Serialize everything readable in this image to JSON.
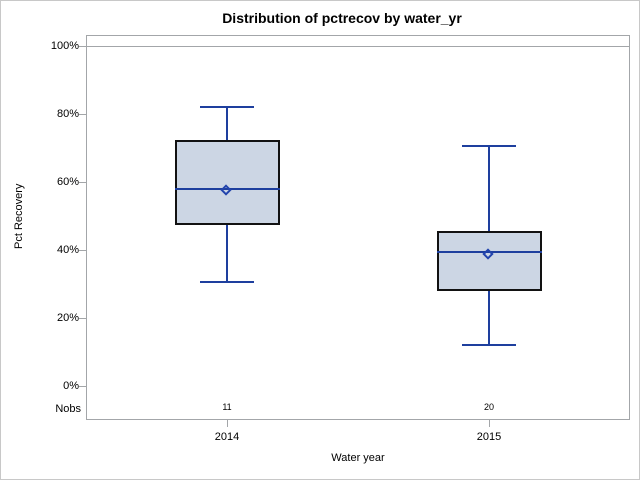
{
  "chart_data": {
    "type": "box",
    "title": "Distribution of pctrecov by water_yr",
    "xlabel": "Water year",
    "ylabel": "Pct Recovery",
    "nobs_label": "Nobs",
    "ylim": [
      0,
      100
    ],
    "y_ticks": [
      {
        "value": 0,
        "label": "0%"
      },
      {
        "value": 20,
        "label": "20%"
      },
      {
        "value": 40,
        "label": "40%"
      },
      {
        "value": 60,
        "label": "60%"
      },
      {
        "value": 80,
        "label": "80%"
      },
      {
        "value": 100,
        "label": "100%"
      }
    ],
    "reference_line_value": 100,
    "grid": false,
    "legend": "none",
    "categories": [
      "2014",
      "2015"
    ],
    "series": [
      {
        "category": "2014",
        "nobs": "11",
        "whisker_low": 30.5,
        "q1": 47.5,
        "median": 58,
        "mean": 57.5,
        "q3": 72.5,
        "whisker_high": 82
      },
      {
        "category": "2015",
        "nobs": "20",
        "whisker_low": 12,
        "q1": 28,
        "median": 39.5,
        "mean": 38.5,
        "q3": 45.5,
        "whisker_high": 70.5
      }
    ],
    "colors": {
      "box_fill": "#ccd6e4",
      "box_border": "#121212",
      "line_blue": "#1e3f9e",
      "frame_gray": "#a3a6a9",
      "text": "#000000",
      "background": "#ffffff"
    }
  }
}
